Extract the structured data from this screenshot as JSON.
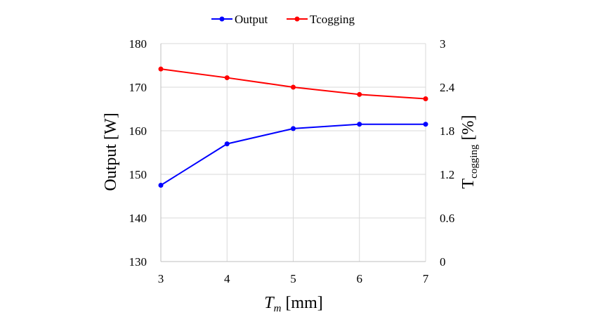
{
  "chart_data": {
    "type": "line",
    "x": [
      3,
      4,
      5,
      6,
      7
    ],
    "xlim": [
      3,
      7
    ],
    "x_ticks": [
      "3",
      "4",
      "5",
      "6",
      "7"
    ],
    "xlabel": {
      "main": "T",
      "sub": "m",
      "unit": " [mm]"
    },
    "ylabel_left": "Output [W]",
    "ylim_left": [
      130,
      180
    ],
    "y_ticks_left": [
      "130",
      "140",
      "150",
      "160",
      "170",
      "180"
    ],
    "ylabel_right": {
      "main": "T",
      "sub": "cogging",
      "unit": " [%]"
    },
    "ylim_right": [
      0,
      3
    ],
    "y_ticks_right": [
      "0",
      "0.6",
      "1.2",
      "1.8",
      "2.4",
      "3"
    ],
    "grid": true,
    "legend_position": "top",
    "series": [
      {
        "name": "Output",
        "axis": "left",
        "color": "#0000ff",
        "values": [
          147.5,
          157,
          160.5,
          161.5,
          161.5
        ]
      },
      {
        "name": "Tcogging",
        "axis": "right",
        "color": "#ff0000",
        "values": [
          2.65,
          2.53,
          2.4,
          2.3,
          2.24
        ]
      }
    ]
  }
}
